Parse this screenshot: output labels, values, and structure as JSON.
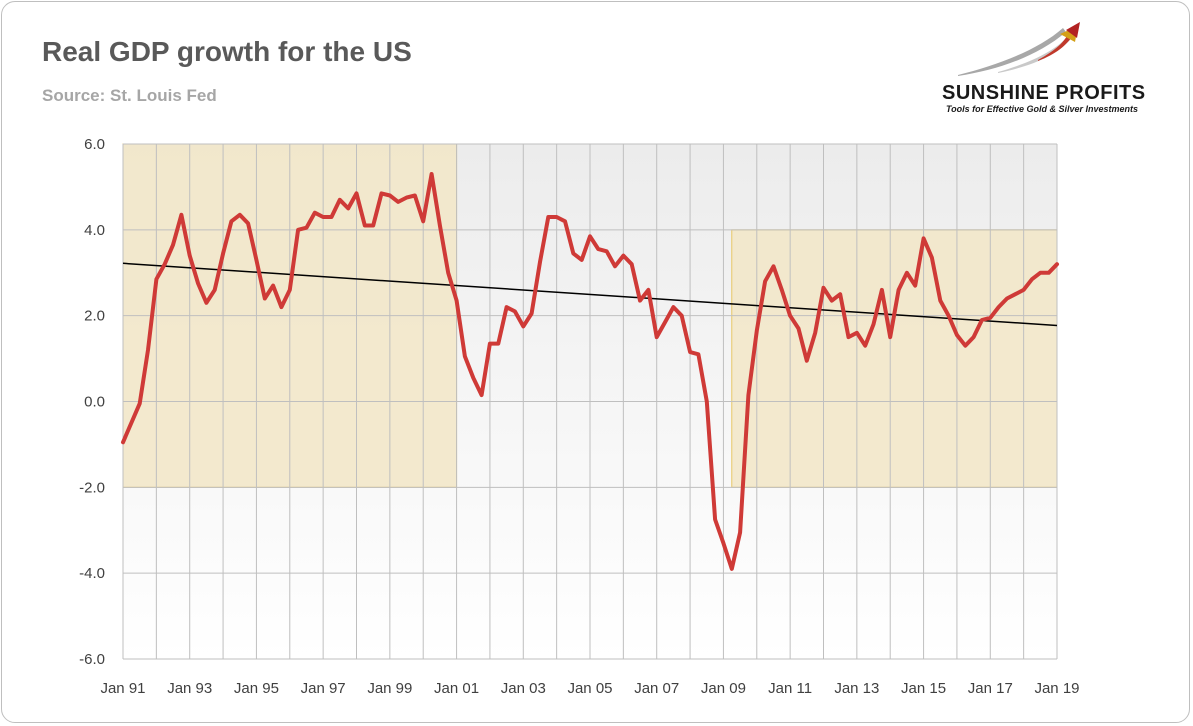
{
  "title": "Real GDP growth for the US",
  "subtitle": "Source: St. Louis Fed",
  "logo": {
    "name": "SUNSHINE PROFITS",
    "tagline": "Tools for Effective Gold & Silver Investments"
  },
  "colors": {
    "line": "#cf3a37",
    "trend": "#000000",
    "shade": "#f2e6c7",
    "shade_border": "#e8c766",
    "grid": "#bfbfbf",
    "plot_top": "#efefef"
  },
  "chart_data": {
    "type": "line",
    "title": "Real GDP growth for the US",
    "xlabel": "",
    "ylabel": "",
    "x_ticks": [
      "Jan 91",
      "Jan 93",
      "Jan 95",
      "Jan 97",
      "Jan 99",
      "Jan 01",
      "Jan 03",
      "Jan 05",
      "Jan 07",
      "Jan 09",
      "Jan 11",
      "Jan 13",
      "Jan 15",
      "Jan 17",
      "Jan 19"
    ],
    "y_ticks": [
      "6.0",
      "4.0",
      "2.0",
      "0.0",
      "-2.0",
      "-4.0",
      "-6.0"
    ],
    "xlim": [
      1991.0,
      2019.0
    ],
    "ylim": [
      -6,
      6
    ],
    "grid": true,
    "series": [
      {
        "values": [
          [
            1991.0,
            -0.95
          ],
          [
            1991.25,
            -0.5
          ],
          [
            1991.5,
            -0.05
          ],
          [
            1991.75,
            1.2
          ],
          [
            1992.0,
            2.85
          ],
          [
            1992.25,
            3.2
          ],
          [
            1992.5,
            3.65
          ],
          [
            1992.75,
            4.35
          ],
          [
            1993.0,
            3.4
          ],
          [
            1993.25,
            2.75
          ],
          [
            1993.5,
            2.3
          ],
          [
            1993.75,
            2.6
          ],
          [
            1994.0,
            3.45
          ],
          [
            1994.25,
            4.2
          ],
          [
            1994.5,
            4.35
          ],
          [
            1994.75,
            4.15
          ],
          [
            1995.0,
            3.3
          ],
          [
            1995.25,
            2.4
          ],
          [
            1995.5,
            2.7
          ],
          [
            1995.75,
            2.2
          ],
          [
            1996.0,
            2.6
          ],
          [
            1996.25,
            4.0
          ],
          [
            1996.5,
            4.05
          ],
          [
            1996.75,
            4.4
          ],
          [
            1997.0,
            4.3
          ],
          [
            1997.25,
            4.3
          ],
          [
            1997.5,
            4.7
          ],
          [
            1997.75,
            4.5
          ],
          [
            1998.0,
            4.85
          ],
          [
            1998.25,
            4.1
          ],
          [
            1998.5,
            4.1
          ],
          [
            1998.75,
            4.85
          ],
          [
            1999.0,
            4.8
          ],
          [
            1999.25,
            4.65
          ],
          [
            1999.5,
            4.75
          ],
          [
            1999.75,
            4.8
          ],
          [
            2000.0,
            4.2
          ],
          [
            2000.25,
            5.3
          ],
          [
            2000.5,
            4.1
          ],
          [
            2000.75,
            3.0
          ],
          [
            2001.0,
            2.35
          ],
          [
            2001.25,
            1.05
          ],
          [
            2001.5,
            0.55
          ],
          [
            2001.75,
            0.15
          ],
          [
            2002.0,
            1.35
          ],
          [
            2002.25,
            1.35
          ],
          [
            2002.5,
            2.2
          ],
          [
            2002.75,
            2.1
          ],
          [
            2003.0,
            1.75
          ],
          [
            2003.25,
            2.05
          ],
          [
            2003.5,
            3.25
          ],
          [
            2003.75,
            4.3
          ],
          [
            2004.0,
            4.3
          ],
          [
            2004.25,
            4.2
          ],
          [
            2004.5,
            3.45
          ],
          [
            2004.75,
            3.3
          ],
          [
            2005.0,
            3.85
          ],
          [
            2005.25,
            3.55
          ],
          [
            2005.5,
            3.5
          ],
          [
            2005.75,
            3.15
          ],
          [
            2006.0,
            3.4
          ],
          [
            2006.25,
            3.2
          ],
          [
            2006.5,
            2.35
          ],
          [
            2006.75,
            2.6
          ],
          [
            2007.0,
            1.5
          ],
          [
            2007.25,
            1.85
          ],
          [
            2007.5,
            2.2
          ],
          [
            2007.75,
            2.0
          ],
          [
            2008.0,
            1.15
          ],
          [
            2008.25,
            1.1
          ],
          [
            2008.5,
            0.0
          ],
          [
            2008.75,
            -2.75
          ],
          [
            2009.0,
            -3.3
          ],
          [
            2009.25,
            -3.9
          ],
          [
            2009.5,
            -3.05
          ],
          [
            2009.75,
            0.15
          ],
          [
            2010.0,
            1.65
          ],
          [
            2010.25,
            2.8
          ],
          [
            2010.5,
            3.15
          ],
          [
            2010.75,
            2.6
          ],
          [
            2011.0,
            2.0
          ],
          [
            2011.25,
            1.7
          ],
          [
            2011.5,
            0.95
          ],
          [
            2011.75,
            1.6
          ],
          [
            2012.0,
            2.65
          ],
          [
            2012.25,
            2.35
          ],
          [
            2012.5,
            2.5
          ],
          [
            2012.75,
            1.5
          ],
          [
            2013.0,
            1.6
          ],
          [
            2013.25,
            1.3
          ],
          [
            2013.5,
            1.8
          ],
          [
            2013.75,
            2.6
          ],
          [
            2014.0,
            1.5
          ],
          [
            2014.25,
            2.6
          ],
          [
            2014.5,
            3.0
          ],
          [
            2014.75,
            2.7
          ],
          [
            2015.0,
            3.8
          ],
          [
            2015.25,
            3.35
          ],
          [
            2015.5,
            2.35
          ],
          [
            2015.75,
            2.0
          ],
          [
            2016.0,
            1.55
          ],
          [
            2016.25,
            1.3
          ],
          [
            2016.5,
            1.5
          ],
          [
            2016.75,
            1.9
          ],
          [
            2017.0,
            1.95
          ],
          [
            2017.25,
            2.2
          ],
          [
            2017.5,
            2.4
          ],
          [
            2017.75,
            2.5
          ],
          [
            2018.0,
            2.6
          ],
          [
            2018.25,
            2.85
          ],
          [
            2018.5,
            3.0
          ],
          [
            2018.75,
            3.0
          ],
          [
            2019.0,
            3.2
          ]
        ]
      }
    ],
    "trendline": {
      "from": [
        1991.0,
        3.22
      ],
      "to": [
        2019.0,
        1.77
      ]
    },
    "shaded_regions": [
      {
        "x": [
          1991.0,
          2001.0
        ],
        "y": [
          -2,
          6
        ]
      },
      {
        "x": [
          2009.25,
          2019.0
        ],
        "y": [
          -2,
          4
        ]
      }
    ]
  }
}
